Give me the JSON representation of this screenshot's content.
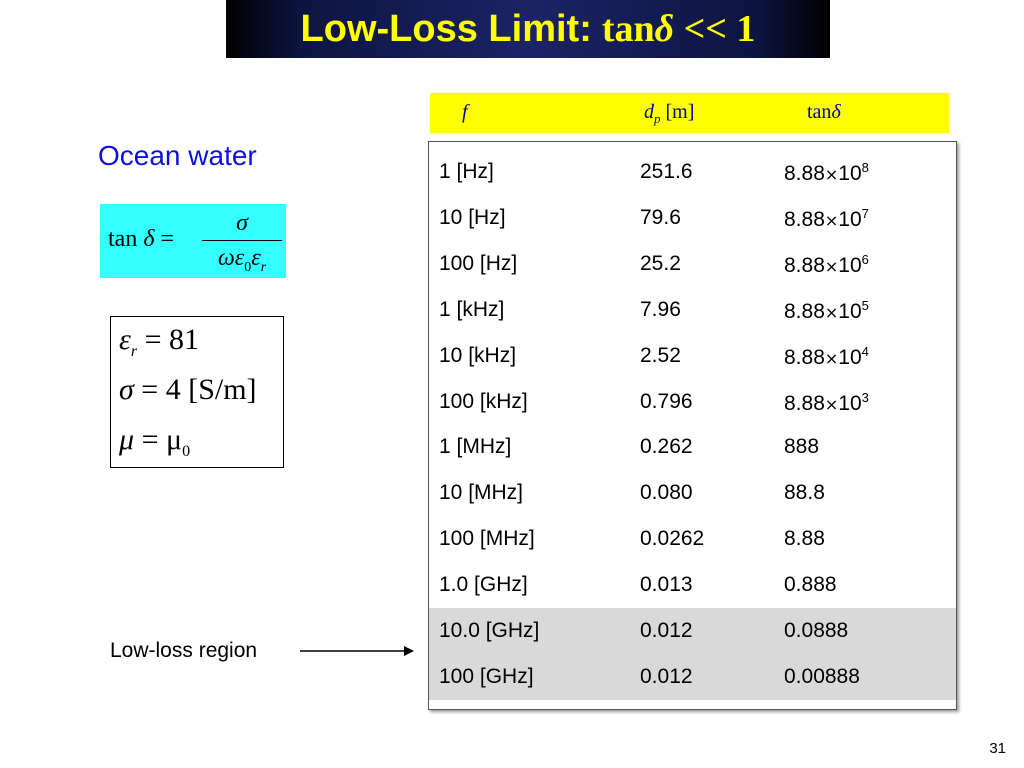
{
  "title": {
    "text": "Low-Loss Limit:",
    "math_prefix": "tan",
    "math_symbol": "δ",
    "math_suffix": " << 1"
  },
  "left": {
    "heading": "Ocean water",
    "formula": {
      "lhs_func": "tan",
      "lhs_symbol": "δ",
      "equals": "=",
      "numerator": "σ",
      "denominator_omega": "ωε",
      "denominator_sub0": "0",
      "denominator_eps": "ε",
      "denominator_subr": "r"
    },
    "params": [
      {
        "symbol": "ε",
        "sub": "r",
        "rest": " = 81"
      },
      {
        "symbol": "σ",
        "sub": "",
        "rest": " = 4  [S/m]"
      },
      {
        "symbol": "μ",
        "sub": "",
        "rest": " = μ",
        "rest_sub": "0"
      }
    ],
    "region_label": "Low-loss region"
  },
  "table": {
    "header": {
      "col1": "f",
      "col2_main": "d",
      "col2_sub": "p",
      "col2_unit": " [m]",
      "col3_func": "tan",
      "col3_symbol": "δ"
    },
    "rows": [
      {
        "freq": "1 [Hz]",
        "dp": "251.6",
        "tan_base": "8.88",
        "times": "×",
        "tan_mant": "10",
        "tan_exp": "8"
      },
      {
        "freq": "10 [Hz]",
        "dp": "79.6",
        "tan_base": "8.88",
        "times": "×",
        "tan_mant": "10",
        "tan_exp": "7"
      },
      {
        "freq": "100 [Hz]",
        "dp": "25.2",
        "tan_base": "8.88",
        "times": "×",
        "tan_mant": "10",
        "tan_exp": "6"
      },
      {
        "freq": "1 [kHz]",
        "dp": "7.96",
        "tan_base": "8.88",
        "times": "×",
        "tan_mant": "10",
        "tan_exp": "5"
      },
      {
        "freq": "10 [kHz]",
        "dp": "2.52",
        "tan_base": "8.88",
        "times": "×",
        "tan_mant": "10",
        "tan_exp": "4"
      },
      {
        "freq": "100 [kHz]",
        "dp": "0.796",
        "tan_base": "8.88",
        "times": "×",
        "tan_mant": "10",
        "tan_exp": "3"
      },
      {
        "freq": "1 [MHz]",
        "dp": "0.262",
        "tan_base": "888",
        "times": "",
        "tan_mant": "",
        "tan_exp": ""
      },
      {
        "freq": "10 [MHz]",
        "dp": "0.080",
        "tan_base": "88.8",
        "times": "",
        "tan_mant": "",
        "tan_exp": ""
      },
      {
        "freq": "100 [MHz]",
        "dp": "0.0262",
        "tan_base": "8.88",
        "times": "",
        "tan_mant": "",
        "tan_exp": ""
      },
      {
        "freq": "1.0  [GHz]",
        "dp": "0.013",
        "tan_base": "0.888",
        "times": "",
        "tan_mant": "",
        "tan_exp": ""
      },
      {
        "freq": "10.0 [GHz]",
        "dp": "0.012",
        "tan_base": "0.0888",
        "times": "",
        "tan_mant": "",
        "tan_exp": ""
      },
      {
        "freq": "100 [GHz]",
        "dp": "0.012",
        "tan_base": "0.00888",
        "times": "",
        "tan_mant": "",
        "tan_exp": ""
      }
    ],
    "shaded_rows": [
      10,
      11
    ],
    "shade_color": "#d9d9d9"
  },
  "page_number": "31",
  "colors": {
    "title_text": "#ffff00",
    "title_bg": "#1b2466",
    "heading": "#1010e0",
    "formula_bg": "#33ffff",
    "header_bg": "#ffff00",
    "header_text": "#0000aa"
  }
}
